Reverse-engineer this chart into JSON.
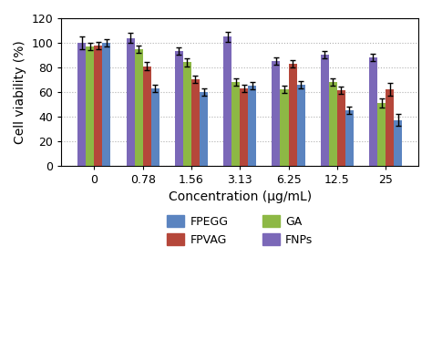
{
  "concentrations": [
    "0",
    "0.78",
    "1.56",
    "3.13",
    "6.25",
    "12.5",
    "25"
  ],
  "FNPs": [
    100,
    104,
    93,
    105,
    85,
    90,
    88
  ],
  "GA": [
    97,
    95,
    84,
    68,
    62,
    68,
    51
  ],
  "FPVAG": [
    98,
    81,
    70,
    63,
    83,
    61,
    62
  ],
  "FPEGG": [
    100,
    63,
    60,
    65,
    66,
    45,
    37
  ],
  "FNPs_err": [
    5,
    4,
    3,
    4,
    3,
    3,
    3
  ],
  "GA_err": [
    3,
    3,
    3,
    3,
    3,
    3,
    4
  ],
  "FPVAG_err": [
    3,
    3,
    3,
    3,
    3,
    3,
    5
  ],
  "FPEGG_err": [
    3,
    3,
    3,
    3,
    3,
    3,
    5
  ],
  "colors": {
    "FNPs": "#7b68b8",
    "GA": "#8db845",
    "FPVAG": "#b5473a",
    "FPEGG": "#5b84c0"
  },
  "bar_order": [
    "FNPs",
    "GA",
    "FPVAG",
    "FPEGG"
  ],
  "ylabel": "Cell viability (%)",
  "xlabel": "Concentration (μg/mL)",
  "ylim": [
    0,
    120
  ],
  "yticks": [
    0,
    20,
    40,
    60,
    80,
    100,
    120
  ],
  "grid_color": "#b0b0b0",
  "bar_width": 0.17,
  "legend_order": [
    "FPEGG",
    "FPVAG",
    "GA",
    "FNPs"
  ]
}
